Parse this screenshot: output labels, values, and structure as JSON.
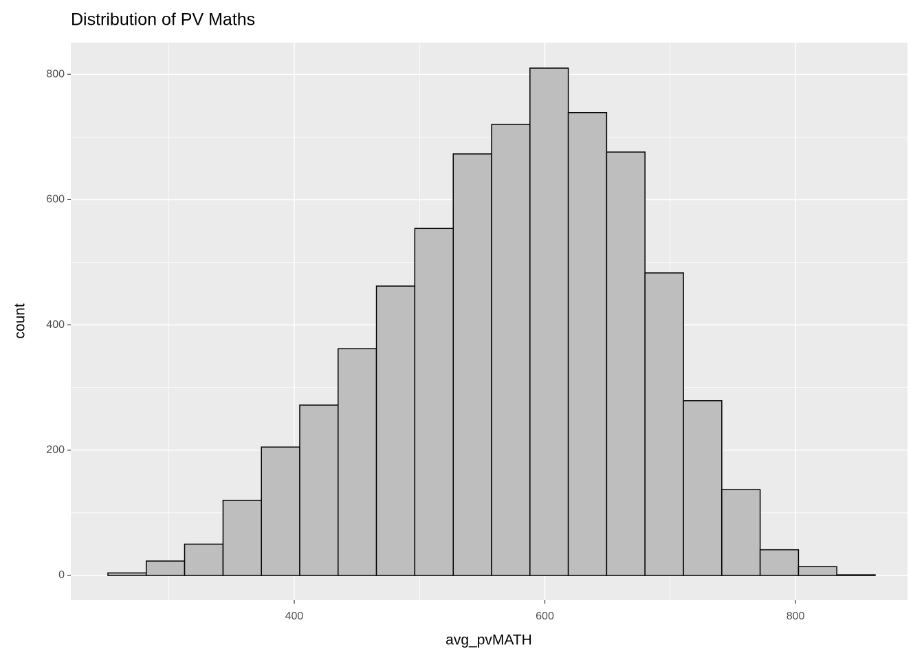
{
  "chart_data": {
    "type": "histogram",
    "title": "Distribution of PV Maths",
    "x_label": "avg_pvMATH",
    "y_label": "count",
    "bins": [
      251.3,
      281.9,
      312.5,
      343.2,
      373.8,
      404.4,
      435.0,
      465.6,
      496.2,
      526.9,
      557.5,
      588.1,
      618.7,
      649.3,
      679.9,
      710.6,
      741.2,
      771.8,
      802.4,
      833.0,
      863.6
    ],
    "values": [
      4,
      23,
      50,
      120,
      205,
      272,
      362,
      462,
      554,
      673,
      720,
      810,
      739,
      676,
      483,
      279,
      137,
      41,
      14,
      1
    ],
    "color": "#bebebe",
    "edge_color": "#000000",
    "xlim": [
      221.7,
      889.4
    ],
    "xticks": [
      400,
      600,
      800
    ],
    "x_minor_ticks": [
      300,
      500,
      700
    ],
    "ylim": [
      -39.5,
      850.7
    ],
    "yticks": [
      0,
      200,
      400,
      600,
      800
    ],
    "y_minor_ticks": [
      100,
      300,
      500,
      700
    ],
    "grid": true
  }
}
